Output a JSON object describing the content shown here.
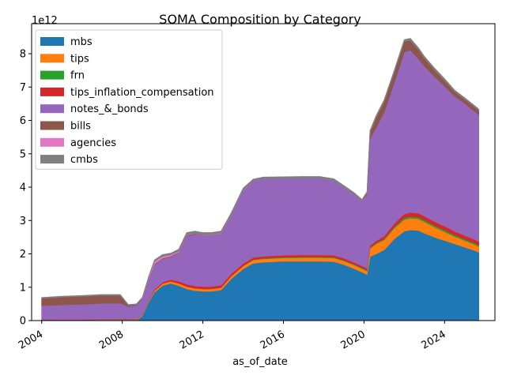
{
  "chart_data": {
    "type": "area",
    "stacked": true,
    "title": "SOMA Composition by Category",
    "xlabel": "as_of_date",
    "ylabel": "",
    "y_scale_label": "1e12",
    "y_multiplier": 1000000000000.0,
    "xlim": [
      2003.5,
      2026.5
    ],
    "ylim": [
      0,
      8.9
    ],
    "x_ticks": [
      2004,
      2008,
      2012,
      2016,
      2020,
      2024
    ],
    "x_tick_labels": [
      "2004",
      "2008",
      "2012",
      "2016",
      "2020",
      "2024"
    ],
    "y_ticks": [
      0,
      1,
      2,
      3,
      4,
      5,
      6,
      7,
      8
    ],
    "y_tick_labels": [
      "0",
      "1",
      "2",
      "3",
      "4",
      "5",
      "6",
      "7",
      "8"
    ],
    "grid": false,
    "legend_position": "top-left",
    "x": [
      2004.0,
      2005.0,
      2006.0,
      2007.0,
      2007.9,
      2008.3,
      2008.7,
      2009.0,
      2009.3,
      2009.6,
      2010.0,
      2010.4,
      2010.8,
      2011.2,
      2011.6,
      2012.0,
      2012.4,
      2012.9,
      2013.4,
      2014.0,
      2014.5,
      2015.0,
      2016.0,
      2017.0,
      2017.8,
      2018.5,
      2019.0,
      2019.5,
      2019.9,
      2020.15,
      2020.3,
      2020.6,
      2021.0,
      2021.5,
      2022.0,
      2022.3,
      2022.7,
      2023.0,
      2023.5,
      2024.0,
      2024.5,
      2025.0,
      2025.5,
      2025.7
    ],
    "series": [
      {
        "name": "mbs",
        "color": "#1f77b4",
        "values": [
          0,
          0,
          0,
          0,
          0,
          0,
          0,
          0.15,
          0.55,
          0.85,
          1.05,
          1.12,
          1.05,
          0.95,
          0.9,
          0.88,
          0.88,
          0.92,
          1.25,
          1.55,
          1.72,
          1.75,
          1.78,
          1.78,
          1.78,
          1.77,
          1.68,
          1.56,
          1.45,
          1.38,
          1.92,
          2.0,
          2.12,
          2.45,
          2.68,
          2.72,
          2.7,
          2.62,
          2.5,
          2.4,
          2.3,
          2.2,
          2.1,
          2.05
        ]
      },
      {
        "name": "tips",
        "color": "#ff7f0e",
        "values": [
          0.02,
          0.02,
          0.02,
          0.03,
          0.03,
          0.03,
          0.03,
          0.03,
          0.04,
          0.05,
          0.06,
          0.06,
          0.07,
          0.07,
          0.07,
          0.07,
          0.07,
          0.07,
          0.08,
          0.09,
          0.1,
          0.1,
          0.1,
          0.11,
          0.11,
          0.11,
          0.11,
          0.11,
          0.11,
          0.11,
          0.25,
          0.3,
          0.3,
          0.32,
          0.35,
          0.35,
          0.35,
          0.34,
          0.3,
          0.26,
          0.22,
          0.2,
          0.18,
          0.17
        ]
      },
      {
        "name": "frn",
        "color": "#2ca02c",
        "values": [
          0,
          0,
          0,
          0,
          0,
          0,
          0,
          0,
          0,
          0,
          0,
          0,
          0,
          0,
          0,
          0,
          0,
          0,
          0,
          0,
          0.01,
          0.02,
          0.02,
          0.02,
          0.02,
          0.02,
          0.02,
          0.02,
          0.02,
          0.02,
          0.02,
          0.03,
          0.03,
          0.04,
          0.05,
          0.05,
          0.05,
          0.05,
          0.05,
          0.05,
          0.04,
          0.04,
          0.04,
          0.04
        ]
      },
      {
        "name": "tips_inflation_compensation",
        "color": "#d62728",
        "values": [
          0.01,
          0.01,
          0.01,
          0.01,
          0.01,
          0.01,
          0.01,
          0.01,
          0.02,
          0.03,
          0.04,
          0.05,
          0.06,
          0.07,
          0.07,
          0.07,
          0.07,
          0.07,
          0.07,
          0.07,
          0.06,
          0.06,
          0.06,
          0.06,
          0.06,
          0.06,
          0.06,
          0.06,
          0.06,
          0.06,
          0.06,
          0.06,
          0.08,
          0.1,
          0.12,
          0.12,
          0.12,
          0.12,
          0.12,
          0.12,
          0.12,
          0.11,
          0.11,
          0.11
        ]
      },
      {
        "name": "notes_&_bonds",
        "color": "#9467bd",
        "values": [
          0.42,
          0.44,
          0.46,
          0.48,
          0.48,
          0.38,
          0.42,
          0.45,
          0.6,
          0.75,
          0.7,
          0.68,
          0.85,
          1.45,
          1.55,
          1.55,
          1.55,
          1.55,
          1.75,
          2.2,
          2.3,
          2.32,
          2.3,
          2.3,
          2.3,
          2.24,
          2.13,
          2.05,
          1.95,
          2.2,
          3.2,
          3.4,
          3.72,
          4.22,
          4.85,
          4.87,
          4.63,
          4.5,
          4.35,
          4.2,
          4.05,
          3.96,
          3.84,
          3.8
        ]
      },
      {
        "name": "bills",
        "color": "#8c564b",
        "values": [
          0.22,
          0.24,
          0.24,
          0.24,
          0.24,
          0.04,
          0.02,
          0.02,
          0.02,
          0.02,
          0.02,
          0.02,
          0.02,
          0.02,
          0.02,
          0.0,
          0.0,
          0.0,
          0.0,
          0.0,
          0.0,
          0.0,
          0.0,
          0.0,
          0.0,
          0.0,
          0.0,
          0.0,
          0.0,
          0.05,
          0.2,
          0.3,
          0.32,
          0.32,
          0.32,
          0.3,
          0.28,
          0.24,
          0.2,
          0.17,
          0.14,
          0.13,
          0.13,
          0.13
        ]
      },
      {
        "name": "agencies",
        "color": "#e377c2",
        "values": [
          0,
          0,
          0,
          0,
          0,
          0,
          0,
          0.02,
          0.05,
          0.08,
          0.06,
          0.04,
          0.03,
          0.02,
          0.01,
          0.01,
          0.01,
          0.01,
          0.01,
          0.01,
          0.0,
          0.0,
          0.0,
          0.0,
          0.0,
          0.0,
          0.0,
          0.0,
          0.0,
          0.0,
          0.0,
          0.0,
          0.0,
          0.0,
          0.0,
          0.0,
          0.0,
          0.0,
          0.0,
          0.0,
          0.0,
          0.0,
          0.0,
          0.0
        ]
      },
      {
        "name": "cmbs",
        "color": "#7f7f7f",
        "values": [
          0.02,
          0.02,
          0.02,
          0.02,
          0.02,
          0.02,
          0.02,
          0.02,
          0.03,
          0.04,
          0.05,
          0.05,
          0.06,
          0.06,
          0.06,
          0.06,
          0.06,
          0.06,
          0.06,
          0.05,
          0.05,
          0.05,
          0.05,
          0.05,
          0.05,
          0.05,
          0.05,
          0.04,
          0.04,
          0.04,
          0.05,
          0.05,
          0.05,
          0.05,
          0.05,
          0.05,
          0.05,
          0.05,
          0.05,
          0.05,
          0.04,
          0.04,
          0.04,
          0.04
        ]
      }
    ]
  }
}
